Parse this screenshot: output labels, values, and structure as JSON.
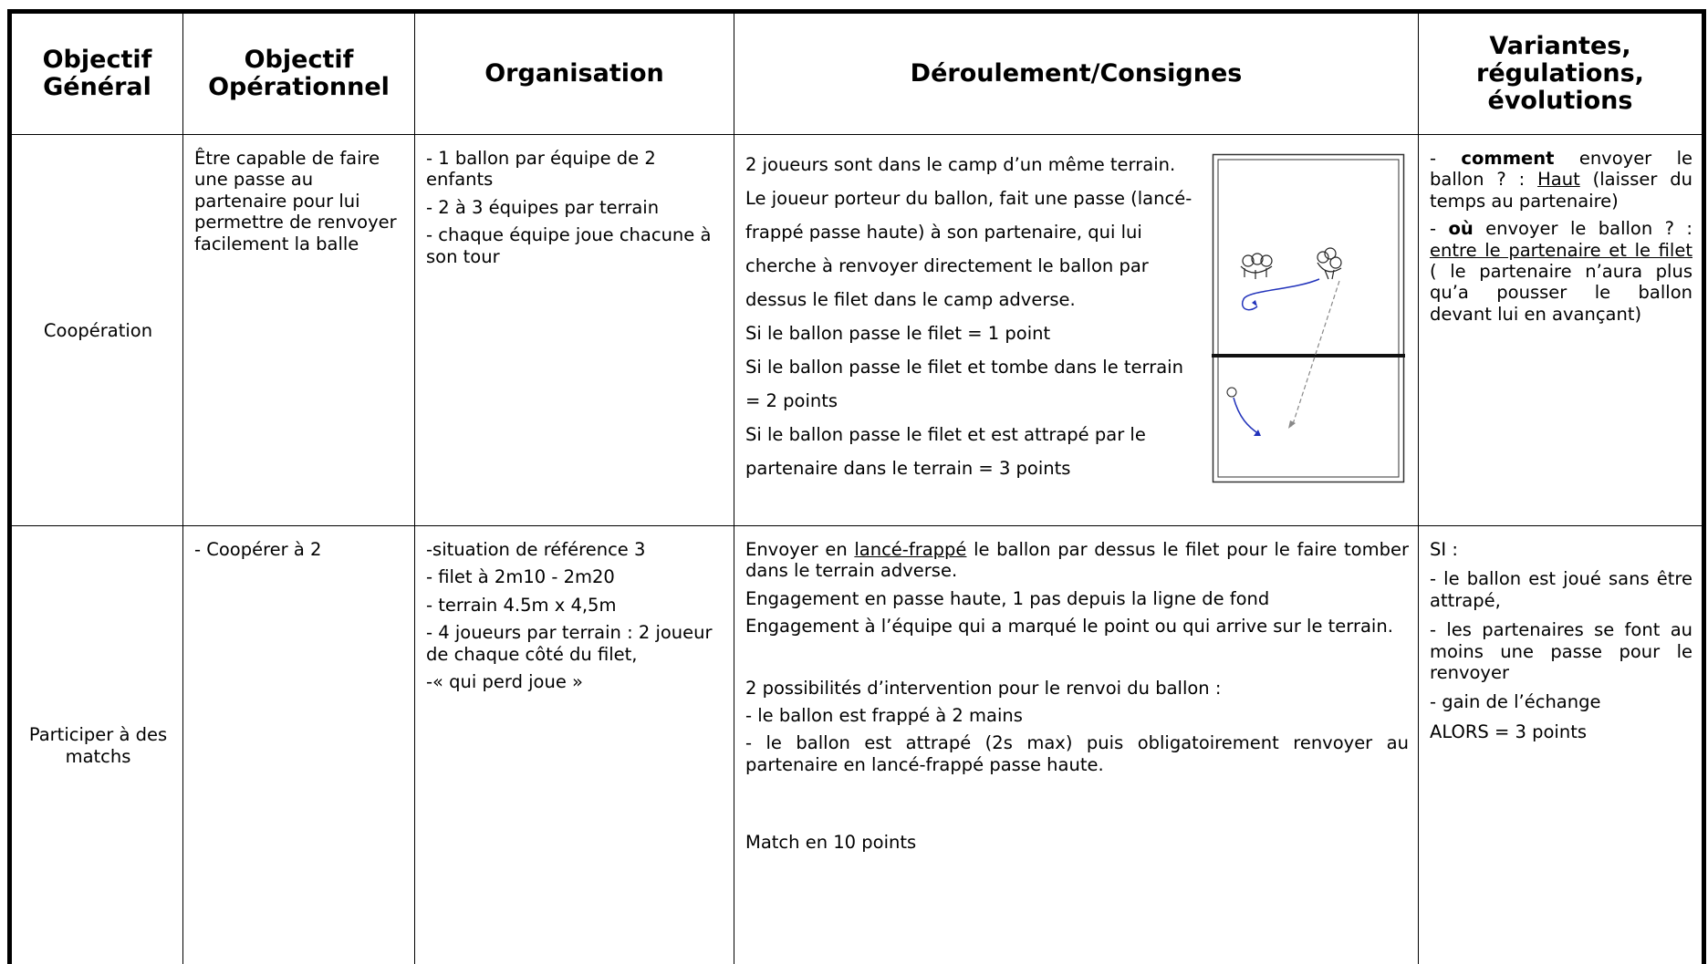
{
  "table": {
    "headers": [
      [
        "Objectif",
        "Général"
      ],
      [
        "Objectif",
        "Opérationnel"
      ],
      [
        "Organisation"
      ],
      [
        "Déroulement/Consignes"
      ],
      [
        "Variantes,",
        "régulations,",
        "évolutions"
      ]
    ],
    "rows": [
      [
        [
          "Coopération"
        ],
        [
          "Être capable de faire une passe au partenaire pour lui permettre de renvoyer facilement la balle"
        ],
        [
          "- 1 ballon par équipe de 2 enfants",
          "- 2 à 3 équipes par terrain",
          "-  chaque équipe joue chacune à son tour"
        ],
        [
          "2 joueurs sont dans le camp d’un même terrain. Le joueur porteur du ballon, fait une passe (lancé-frappé passe haute) à son partenaire, qui lui cherche à renvoyer directement le ballon par dessus le filet dans le camp adverse.",
          "Si le ballon passe le filet = 1 point",
          "Si le ballon passe le filet et tombe dans le terrain = 2 points",
          "Si le ballon passe le filet et est attrapé par le partenaire dans le terrain = 3 points"
        ],
        [
          [
            "- ",
            {
              "text": "comment",
              "bold": true
            },
            " envoyer le ballon ? : ",
            {
              "text": "Haut",
              "underline": true
            },
            " (laisser du temps au partenaire)"
          ],
          [
            "- ",
            {
              "text": "où",
              "bold": true
            },
            " envoyer le ballon ? : ",
            {
              "text": "entre le partenaire et le filet",
              "underline": true
            },
            " ( le partenaire n’aura plus qu’a pousser le ballon devant lui en avançant)"
          ]
        ]
      ],
      [
        [
          "Participer à des matchs"
        ],
        [
          "- Coopérer à 2"
        ],
        [
          "-situation de référence 3",
          "- filet à 2m10 - 2m20",
          "- terrain 4.5m x 4,5m",
          "- 4 joueurs par terrain : 2 joueur de chaque côté du filet,",
          "-« qui perd joue »"
        ],
        [
          [
            "Envoyer en ",
            {
              "text": "lancé-frappé",
              "underline": true
            },
            " le ballon par dessus le filet pour le faire tomber dans le terrain adverse."
          ],
          "Engagement en passe haute, 1 pas depuis la ligne de fond",
          "Engagement à l’équipe qui a marqué le point ou qui arrive sur le terrain.",
          "2 possibilités d’intervention pour le renvoi du ballon :",
          "- le ballon est frappé à 2 mains",
          "- le ballon est attrapé (2s max) puis obligatoirement renvoyer au partenaire en lancé-frappé passe haute.",
          "Match en 10 points"
        ],
        [
          "SI :",
          "- le ballon est joué sans être attrapé,",
          "- les partenaires se font au moins une passe pour le renvoyer",
          "- gain de l’échange",
          "ALORS = 3 points"
        ]
      ]
    ]
  }
}
